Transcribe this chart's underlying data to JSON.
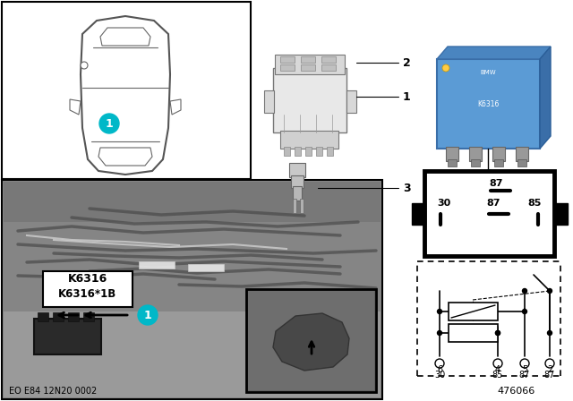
{
  "bg_color": "#ffffff",
  "teal_color": "#00b8c8",
  "relay_blue": "#5599dd",
  "label_k6316": "K6316",
  "label_k6316b": "K6316*1B",
  "footer_code": "EO E84 12N20 0002",
  "part_id": "476066",
  "gray_photo_bg": "#aaaaaa",
  "gray_photo_mid": "#999999",
  "gray_dark": "#707070"
}
